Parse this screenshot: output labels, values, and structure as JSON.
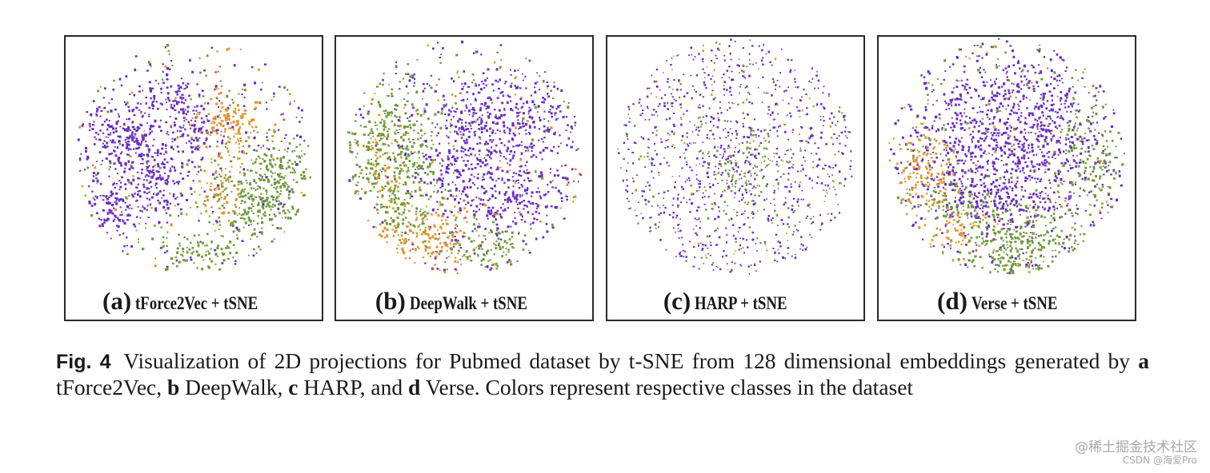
{
  "colors": {
    "purple": "#6a2dc4",
    "green": "#6e9a3a",
    "orange": "#e0962e"
  },
  "panels": [
    {
      "letter": "(a)",
      "method": "tForce2Vec + tSNE"
    },
    {
      "letter": "(b)",
      "method": "DeepWalk + tSNE"
    },
    {
      "letter": "(c)",
      "method": "HARP + tSNE"
    },
    {
      "letter": "(d)",
      "method": "Verse + tSNE"
    }
  ],
  "caption": {
    "label": "Fig. 4",
    "t1": "Visualization of 2D projections for Pubmed dataset by t-SNE from 128 dimensional embeddings generated by ",
    "a": "a",
    "t2": " tForce2Vec, ",
    "b": "b",
    "t3": " DeepWalk, ",
    "c": "c",
    "t4": " HARP, and ",
    "d": "d",
    "t5": " Verse. Colors represent respective classes in the dataset"
  },
  "watermark": {
    "line1": "@稀土掘金技术社区",
    "line2": "CSDN @海爱Pro"
  }
}
